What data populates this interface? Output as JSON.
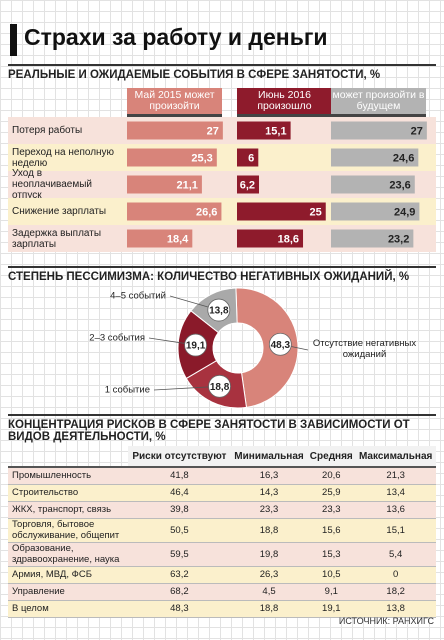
{
  "title": "Страхи за работу и деньги",
  "chart_data": [
    {
      "type": "bar",
      "orientation": "horizontal",
      "title": "РЕАЛЬНЫЕ И ОЖИДАЕМЫЕ СОБЫТИЯ В СФЕРЕ ЗАНЯТОСТИ, %",
      "categories": [
        "Потеря работы",
        "Переход на неполную неделю",
        "Уход в неоплачиваемый отпуск",
        "Снижение зарплаты",
        "Задержка выплаты зарплаты"
      ],
      "series": [
        {
          "name": "Май 2015 может произойти",
          "color": "#d8847a",
          "values": [
            27,
            25.3,
            21.1,
            26.6,
            18.4
          ],
          "value_labels": [
            "27",
            "25,3",
            "21,1",
            "26,6",
            "18,4"
          ]
        },
        {
          "name": "Июнь 2016 произошло",
          "color": "#8e1b2c",
          "values": [
            15.1,
            6,
            6.2,
            25,
            18.6
          ],
          "value_labels": [
            "15,1",
            "6",
            "6,2",
            "25",
            "18,6"
          ]
        },
        {
          "name": "может произойти в будущем",
          "color": "#b3b3b3",
          "values": [
            27,
            24.6,
            23.6,
            24.9,
            23.2
          ],
          "value_labels": [
            "27",
            "24,6",
            "23,6",
            "24,9",
            "23,2"
          ]
        }
      ]
    },
    {
      "type": "pie",
      "donut": true,
      "title": "СТЕПЕНЬ ПЕССИМИЗМА: КОЛИЧЕСТВО НЕГАТИВНЫХ ОЖИДАНИЙ, %",
      "categories": [
        "Отсутствие негативных ожиданий",
        "1 событие",
        "2–3 события",
        "4–5 событий"
      ],
      "values": [
        48.3,
        18.8,
        19.1,
        13.8
      ],
      "value_labels": [
        "48,3",
        "18,8",
        "19,1",
        "13,8"
      ],
      "colors": [
        "#d8847a",
        "#a8323f",
        "#8a1a2a",
        "#a9a9a9"
      ]
    }
  ],
  "table": {
    "title": "КОНЦЕНТРАЦИЯ РИСКОВ В СФЕРЕ ЗАНЯТОСТИ В ЗАВИСИМОСТИ ОТ ВИДОВ ДЕЯТЕЛЬНОСТИ, %",
    "columns": [
      "Риски отсутствуют",
      "Минимальная",
      "Средняя",
      "Максимальная"
    ],
    "rows": [
      [
        "Промышленность",
        "41,8",
        "16,3",
        "20,6",
        "21,3"
      ],
      [
        "Строительство",
        "46,4",
        "14,3",
        "25,9",
        "13,4"
      ],
      [
        "ЖКХ, транспорт, связь",
        "39,8",
        "23,3",
        "23,3",
        "13,6"
      ],
      [
        "Торговля, бытовое обслуживание, общепит",
        "50,5",
        "18,8",
        "15,6",
        "15,1"
      ],
      [
        "Образование, здравоохранение, наука",
        "59,5",
        "19,8",
        "15,3",
        "5,4"
      ],
      [
        "Армия, МВД, ФСБ",
        "63,2",
        "26,3",
        "10,5",
        "0"
      ],
      [
        "Управление",
        "68,2",
        "4,5",
        "9,1",
        "18,2"
      ],
      [
        "В целом",
        "48,3",
        "18,8",
        "19,1",
        "13,8"
      ]
    ]
  },
  "source": "ИСТОЧНИК: РАНХИГС"
}
